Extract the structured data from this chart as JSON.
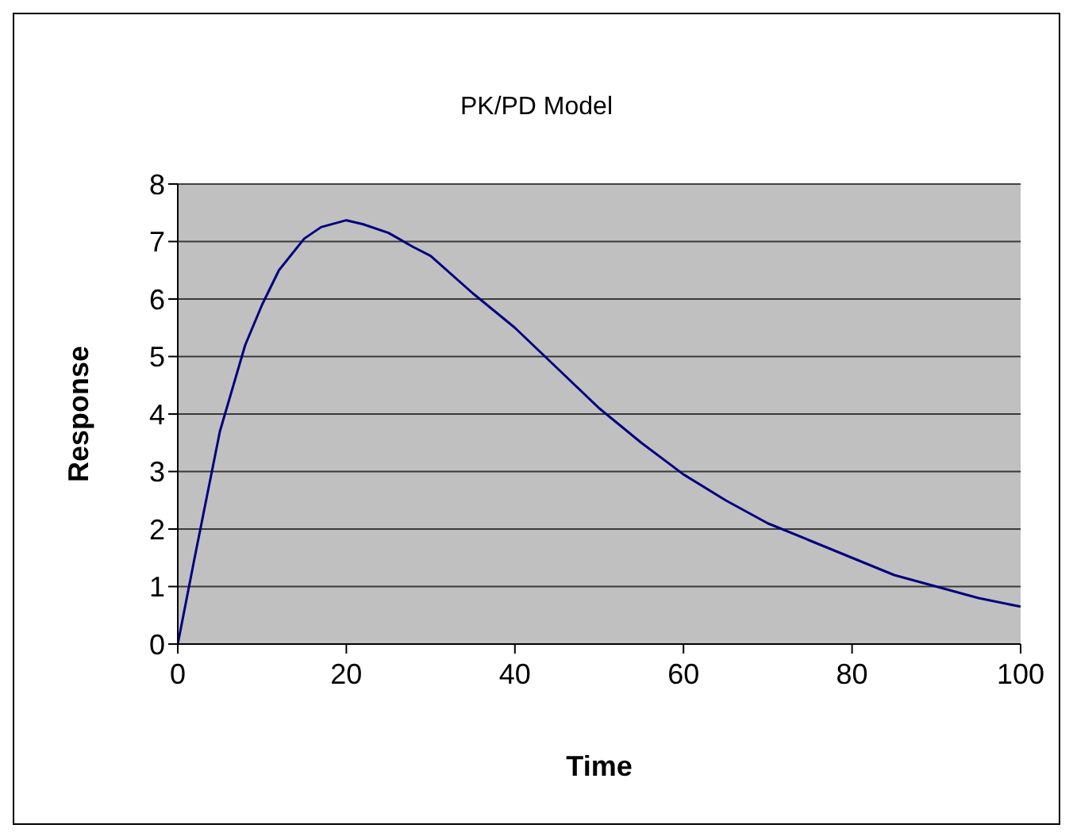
{
  "chart_data": {
    "type": "line",
    "title": "PK/PD Model",
    "xlabel": "Time",
    "ylabel": "Response",
    "x": [
      0,
      2,
      5,
      8,
      10,
      12,
      15,
      17,
      20,
      22,
      25,
      28,
      30,
      35,
      40,
      45,
      50,
      55,
      60,
      65,
      70,
      75,
      80,
      85,
      90,
      95,
      100
    ],
    "series": [
      {
        "color": "#000080",
        "values": [
          0,
          1.5,
          3.7,
          5.2,
          5.9,
          6.5,
          7.05,
          7.25,
          7.37,
          7.3,
          7.15,
          6.9,
          6.75,
          6.1,
          5.5,
          4.8,
          4.1,
          3.5,
          2.95,
          2.5,
          2.1,
          1.8,
          1.5,
          1.2,
          1.0,
          0.8,
          0.65
        ]
      }
    ],
    "xlim": [
      0,
      100
    ],
    "xticks": [
      0,
      20,
      40,
      60,
      80,
      100
    ],
    "ylim": [
      0,
      8
    ],
    "yticks": [
      0,
      1,
      2,
      3,
      4,
      5,
      6,
      7,
      8
    ],
    "grid": "y",
    "marker": "none",
    "line_style": "solid"
  }
}
